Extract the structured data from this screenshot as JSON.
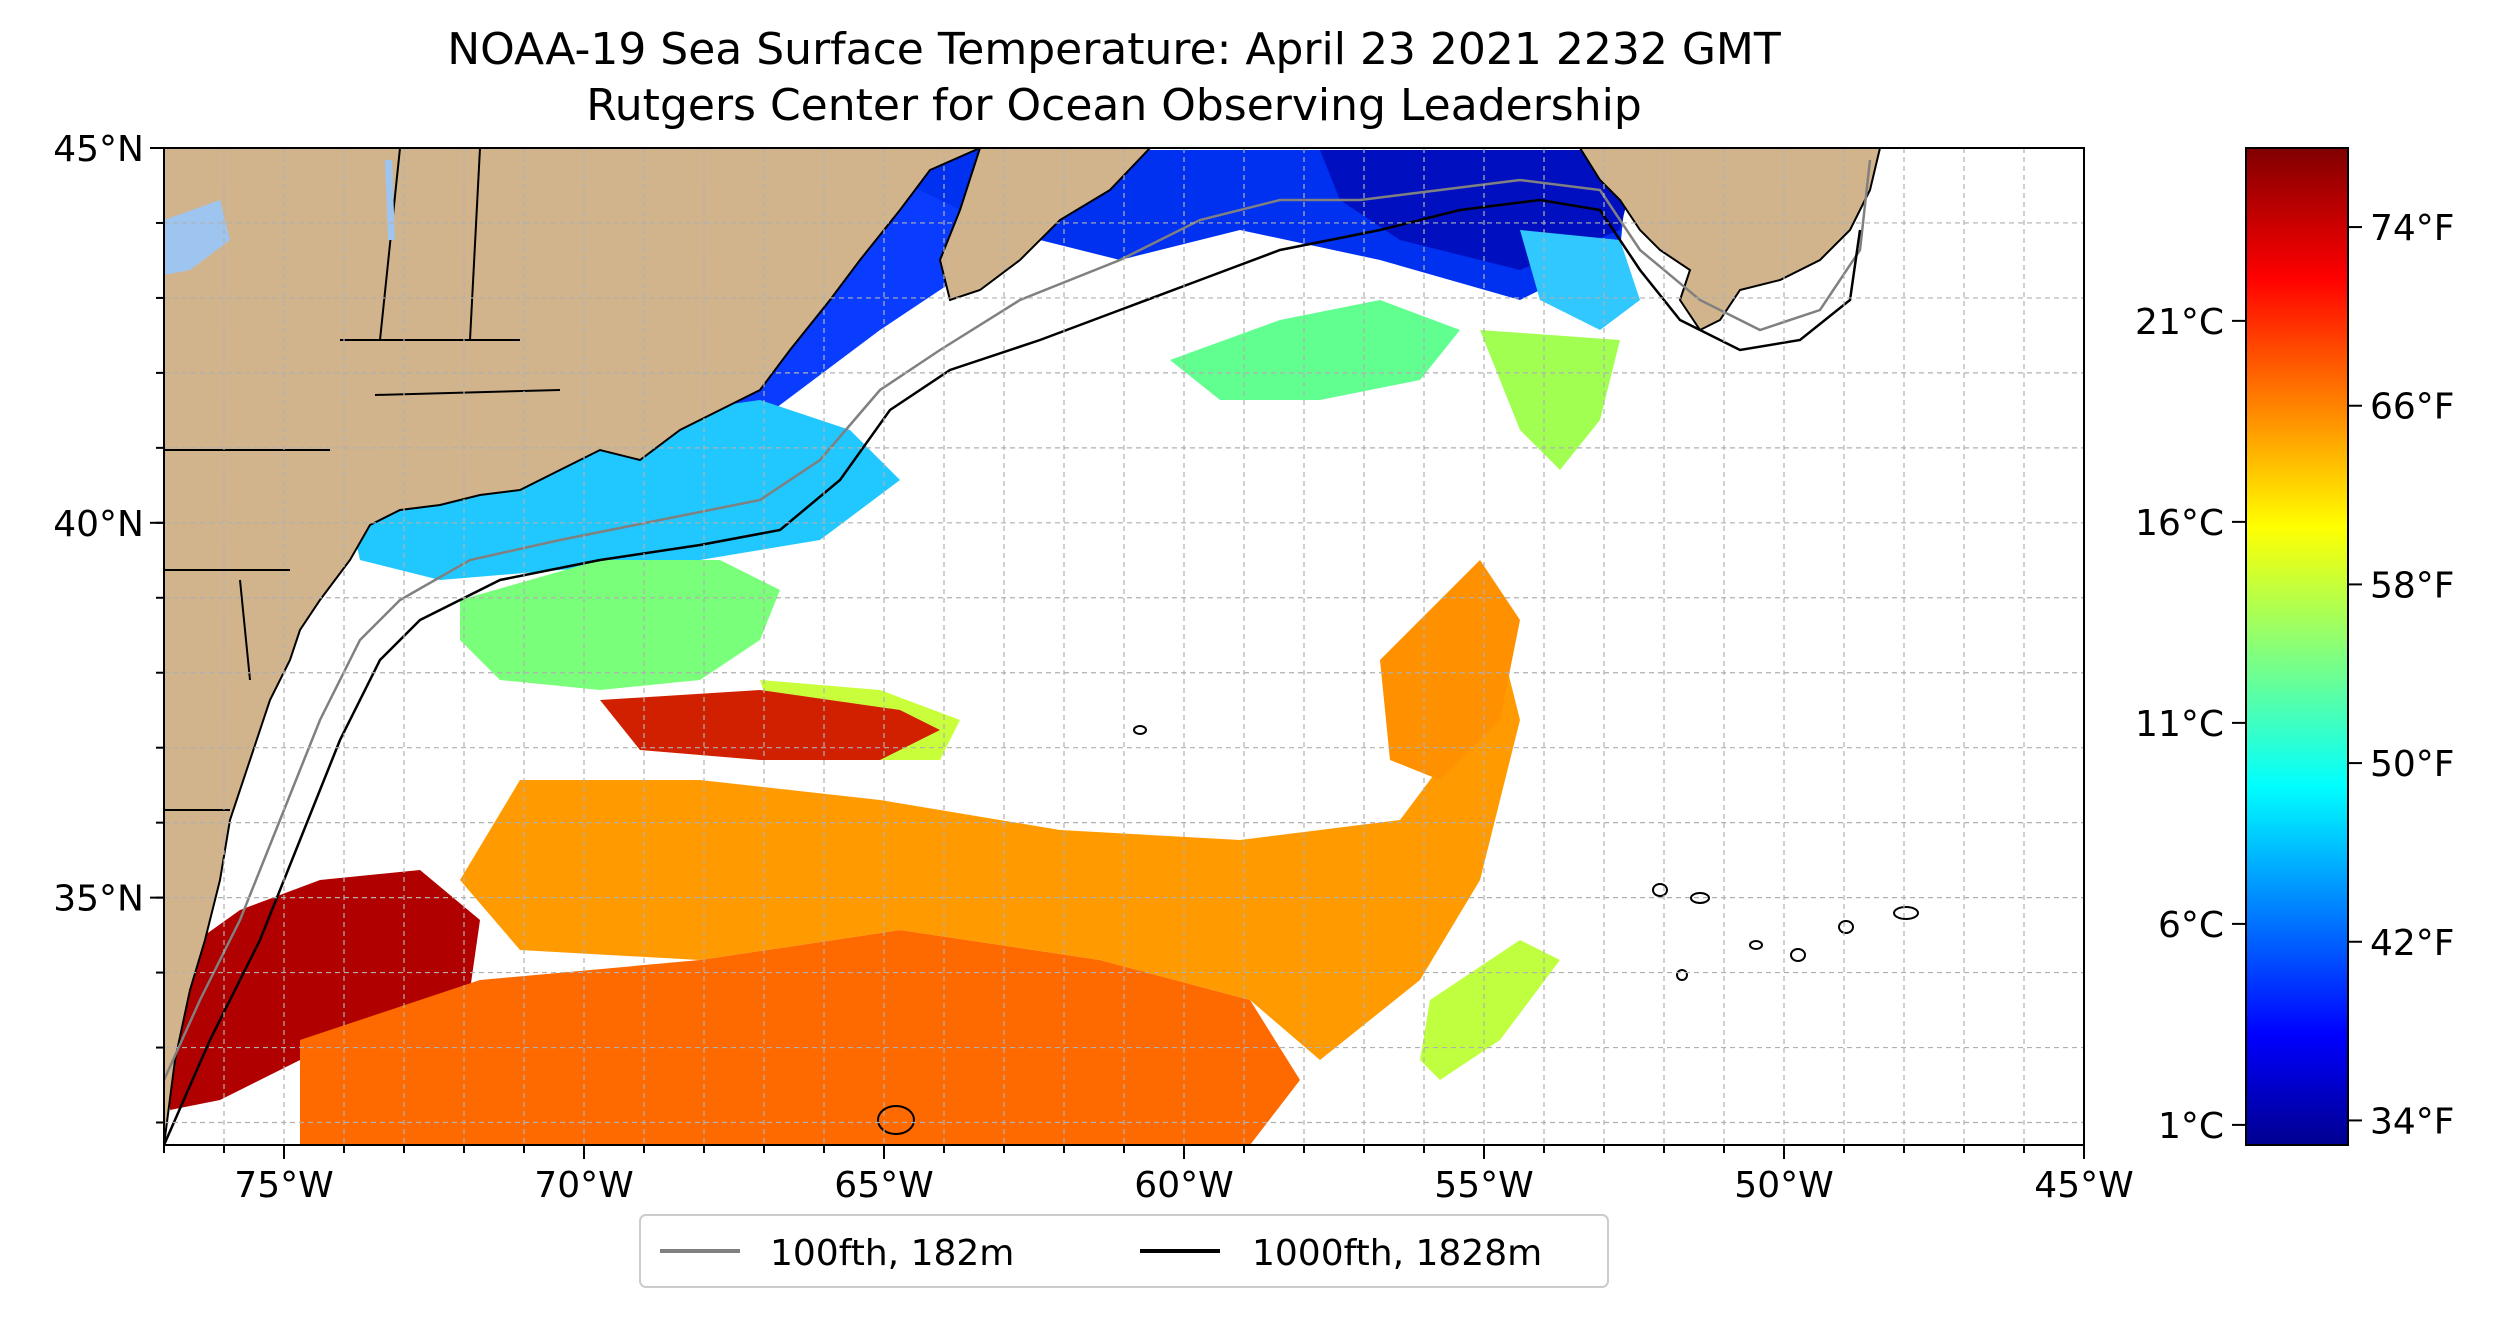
{
  "title": {
    "line1": "NOAA-19 Sea Surface Temperature: April 23 2021 2232 GMT",
    "line2": "Rutgers Center for Ocean Observing Leadership"
  },
  "map": {
    "lat_ticks": [
      {
        "value": 45,
        "label": "45°N"
      },
      {
        "value": 40,
        "label": "40°N"
      },
      {
        "value": 35,
        "label": "35°N"
      }
    ],
    "lon_ticks": [
      {
        "value": -75,
        "label": "75°W"
      },
      {
        "value": -70,
        "label": "70°W"
      },
      {
        "value": -65,
        "label": "65°W"
      },
      {
        "value": -60,
        "label": "60°W"
      },
      {
        "value": -55,
        "label": "55°W"
      },
      {
        "value": -50,
        "label": "50°W"
      },
      {
        "value": -45,
        "label": "45°W"
      }
    ],
    "extent": {
      "lon_min": -77,
      "lon_max": -45,
      "lat_min": 31.7,
      "lat_max": 45
    },
    "gridlines": true,
    "colors": {
      "land": "#d2b48c",
      "isobath_100": "#808080",
      "isobath_1000": "#000000",
      "grid": "#b0b0b0"
    }
  },
  "legend": {
    "position": "bottom-center",
    "items": [
      {
        "label": "100fth, 182m",
        "color": "#808080"
      },
      {
        "label": "1000fth, 1828m",
        "color": "#000000"
      }
    ]
  },
  "colorbar": {
    "colormap": "jet",
    "range_c": [
      0.5,
      25.3
    ],
    "celsius_ticks": [
      {
        "value": 1,
        "label": "1°C"
      },
      {
        "value": 6,
        "label": "6°C"
      },
      {
        "value": 11,
        "label": "11°C"
      },
      {
        "value": 16,
        "label": "16°C"
      },
      {
        "value": 21,
        "label": "21°C"
      }
    ],
    "fahrenheit_ticks": [
      {
        "value": 34,
        "label": "34°F"
      },
      {
        "value": 42,
        "label": "42°F"
      },
      {
        "value": 50,
        "label": "50°F"
      },
      {
        "value": 58,
        "label": "58°F"
      },
      {
        "value": 66,
        "label": "66°F"
      },
      {
        "value": 74,
        "label": "74°F"
      }
    ]
  }
}
